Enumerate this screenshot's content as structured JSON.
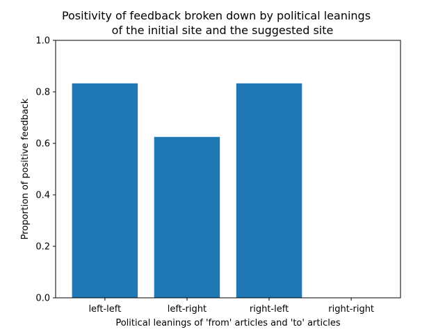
{
  "chart_data": {
    "type": "bar",
    "title_lines": [
      "Positivity of feedback broken down by political leanings",
      "of the initial site and the suggested site"
    ],
    "xlabel": "Political leanings of 'from' articles and 'to' articles",
    "ylabel": "Proportion of positive feedback",
    "categories": [
      "left-left",
      "left-right",
      "right-left",
      "right-right"
    ],
    "values": [
      0.833,
      0.625,
      0.833,
      0.0
    ],
    "ylim": [
      0,
      1.0
    ],
    "yticks": [
      0.0,
      0.2,
      0.4,
      0.6,
      0.8,
      1.0
    ],
    "ytick_labels": [
      "0.0",
      "0.2",
      "0.4",
      "0.6",
      "0.8",
      "1.0"
    ],
    "grid": false,
    "bar_color": "#1f77b4"
  }
}
